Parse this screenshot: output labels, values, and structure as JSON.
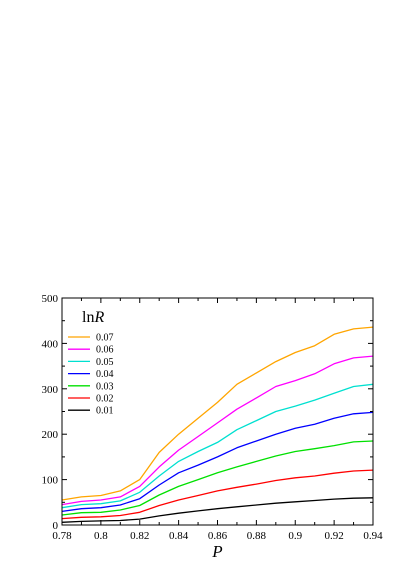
{
  "chart_data": {
    "type": "line",
    "title": "",
    "xlabel": "P",
    "ylabel": "",
    "xlim": [
      0.78,
      0.94
    ],
    "ylim": [
      0,
      500
    ],
    "grid": false,
    "legend_position": "top-left",
    "legend_title": {
      "prefix": "ln",
      "variable": "R"
    },
    "xticks": [
      "0.78",
      "0.8",
      "0.82",
      "0.84",
      "0.86",
      "0.88",
      "0.9",
      "0.92",
      "0.94"
    ],
    "yticks": [
      "0",
      "100",
      "200",
      "300",
      "400",
      "500"
    ],
    "x": [
      0.78,
      0.79,
      0.8,
      0.81,
      0.82,
      0.83,
      0.84,
      0.85,
      0.86,
      0.87,
      0.88,
      0.89,
      0.9,
      0.91,
      0.92,
      0.93,
      0.94
    ],
    "series": [
      {
        "name": "0.07",
        "color": "#ffa500",
        "values": [
          55,
          62,
          65,
          75,
          100,
          160,
          200,
          235,
          270,
          310,
          335,
          360,
          380,
          395,
          420,
          432,
          436
        ]
      },
      {
        "name": "0.06",
        "color": "#ff00ff",
        "values": [
          45,
          52,
          55,
          62,
          85,
          128,
          165,
          195,
          225,
          255,
          280,
          305,
          318,
          333,
          355,
          368,
          372
        ]
      },
      {
        "name": "0.05",
        "color": "#00e0d0",
        "values": [
          38,
          45,
          47,
          53,
          72,
          108,
          140,
          162,
          182,
          210,
          230,
          250,
          262,
          275,
          290,
          305,
          310
        ]
      },
      {
        "name": "0.04",
        "color": "#0000ff",
        "values": [
          30,
          36,
          38,
          44,
          58,
          88,
          115,
          132,
          150,
          170,
          185,
          200,
          213,
          222,
          235,
          245,
          248
        ]
      },
      {
        "name": "0.03",
        "color": "#00e000",
        "values": [
          22,
          27,
          28,
          33,
          43,
          66,
          85,
          100,
          115,
          128,
          140,
          152,
          162,
          168,
          175,
          183,
          185
        ]
      },
      {
        "name": "0.02",
        "color": "#ff0000",
        "values": [
          14,
          17,
          18,
          21,
          28,
          43,
          55,
          65,
          75,
          83,
          90,
          98,
          104,
          108,
          114,
          119,
          121
        ]
      },
      {
        "name": "0.01",
        "color": "#000000",
        "values": [
          6,
          8,
          9,
          10,
          13,
          20,
          26,
          31,
          36,
          40,
          44,
          48,
          51,
          54,
          57,
          59,
          60
        ]
      }
    ]
  }
}
